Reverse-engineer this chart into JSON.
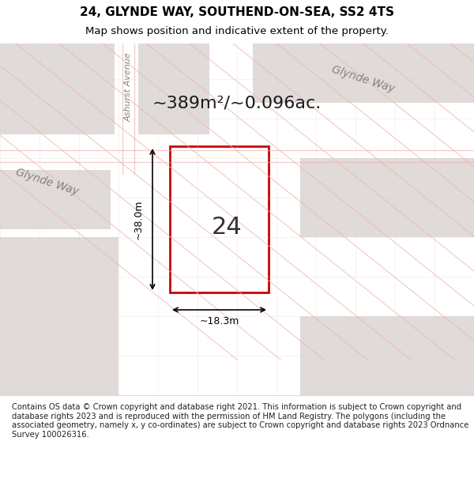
{
  "title": "24, GLYNDE WAY, SOUTHEND-ON-SEA, SS2 4TS",
  "subtitle": "Map shows position and indicative extent of the property.",
  "footer": "Contains OS data © Crown copyright and database right 2021. This information is subject to Crown copyright and database rights 2023 and is reproduced with the permission of HM Land Registry. The polygons (including the associated geometry, namely x, y co-ordinates) are subject to Crown copyright and database rights 2023 Ordnance Survey 100026316.",
  "area_text": "~389m²/~0.096ac.",
  "dim_vertical": "~38.0m",
  "dim_horizontal": "~18.3m",
  "property_number": "24",
  "street_label_1": "Glynde Way",
  "street_label_2": "Glynde Way",
  "avenue_label": "Ashurst Avenue",
  "bg_color": "#f5f0f0",
  "map_bg": "#f0ebe8",
  "road_color_red": "#e8a0a0",
  "road_color_gray": "#d8d0cc",
  "grid_color": "#e0d8d5",
  "plot_color": "#cc0000",
  "plot_fill": "#ffffff",
  "title_color": "#000000",
  "text_color": "#000000",
  "footer_color": "#222222"
}
